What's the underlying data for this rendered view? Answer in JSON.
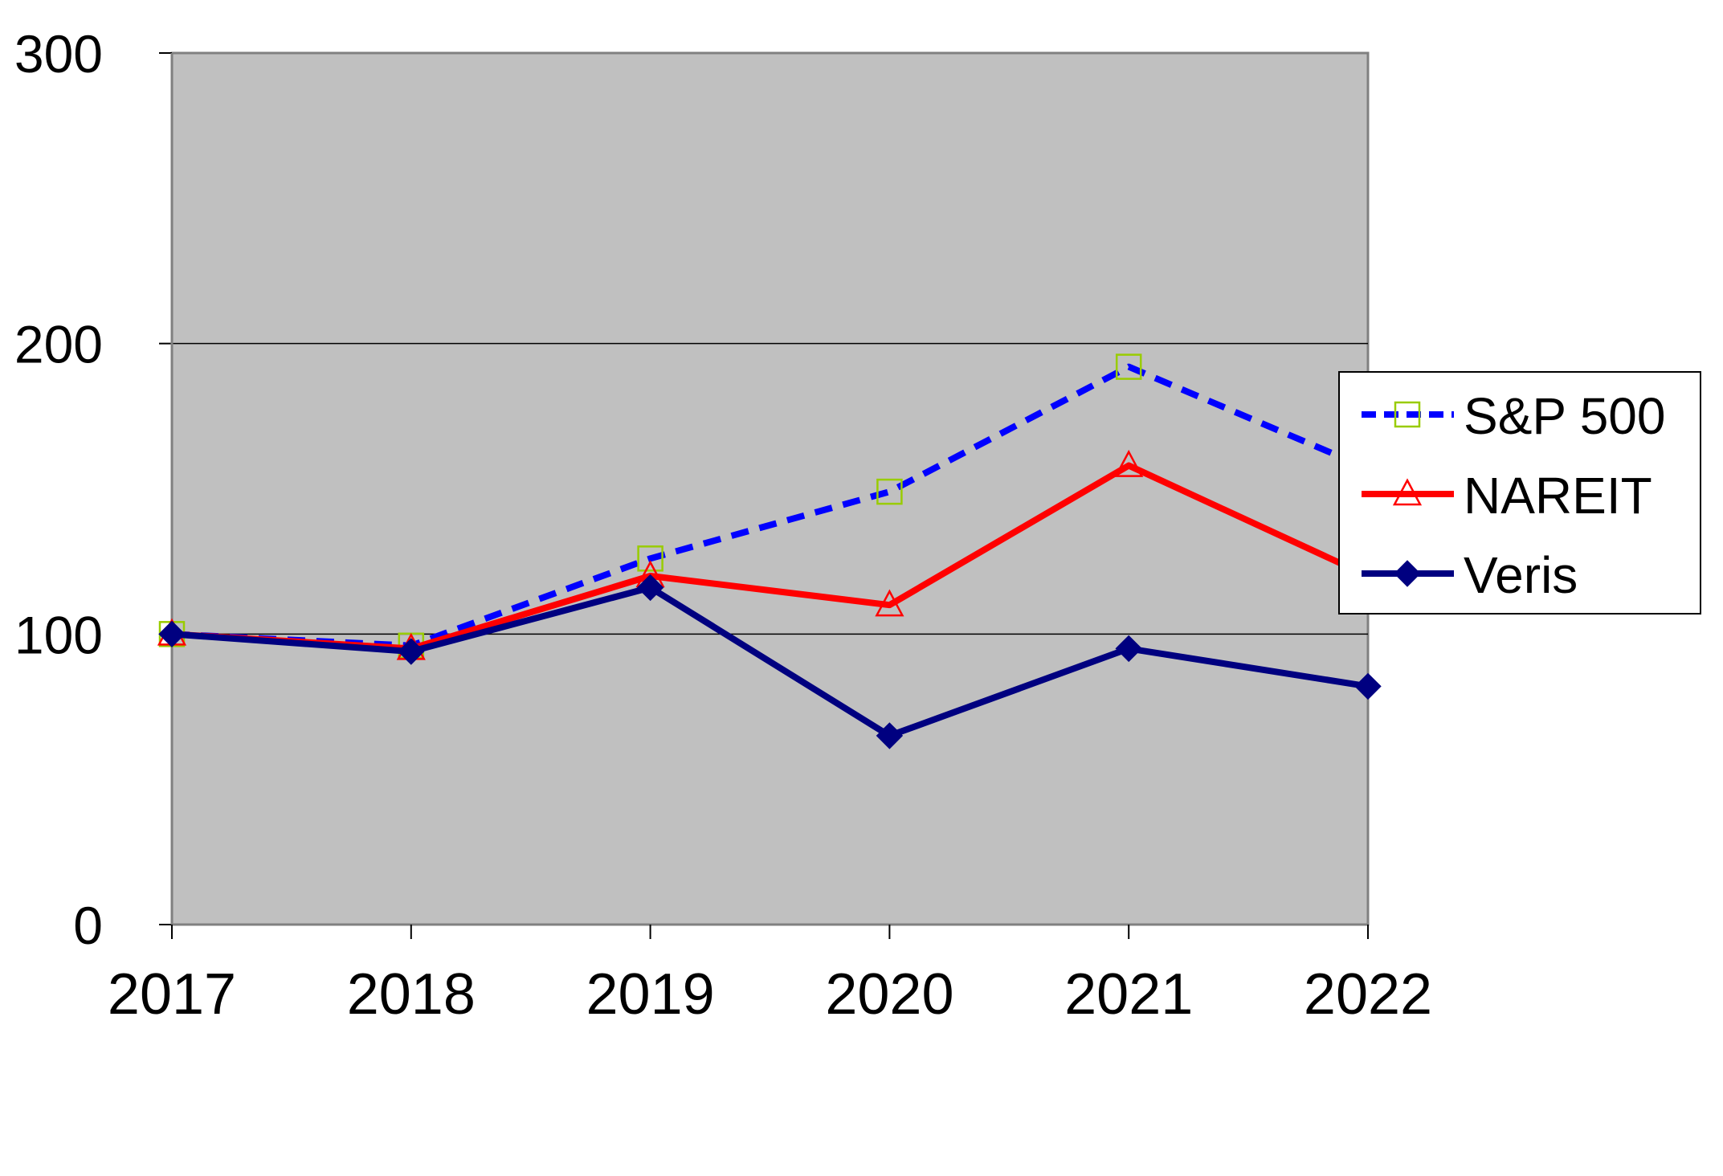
{
  "chart_data": {
    "type": "line",
    "title": "",
    "xlabel": "",
    "ylabel": "",
    "categories": [
      "2017",
      "2018",
      "2019",
      "2020",
      "2021",
      "2022"
    ],
    "ylim": [
      0,
      300
    ],
    "yticks": [
      "0",
      "100",
      "200",
      "300"
    ],
    "grid": "horizontal major gridlines",
    "plot_background": "#c0c0c0",
    "legend_position": "right",
    "series": [
      {
        "name": "S&P 500",
        "values": [
          100,
          96,
          126,
          149,
          192,
          157
        ],
        "color": "#0000ff",
        "line_style": "dashed",
        "marker": "square",
        "marker_color": "#99cc00"
      },
      {
        "name": "NAREIT",
        "values": [
          100,
          95,
          120,
          110,
          158,
          120
        ],
        "color": "#ff0000",
        "line_style": "solid",
        "marker": "triangle",
        "marker_color": "#ff0000"
      },
      {
        "name": "Veris",
        "values": [
          100,
          94,
          116,
          65,
          95,
          82
        ],
        "color": "#000080",
        "line_style": "solid",
        "marker": "diamond",
        "marker_color": "#000080"
      }
    ]
  }
}
